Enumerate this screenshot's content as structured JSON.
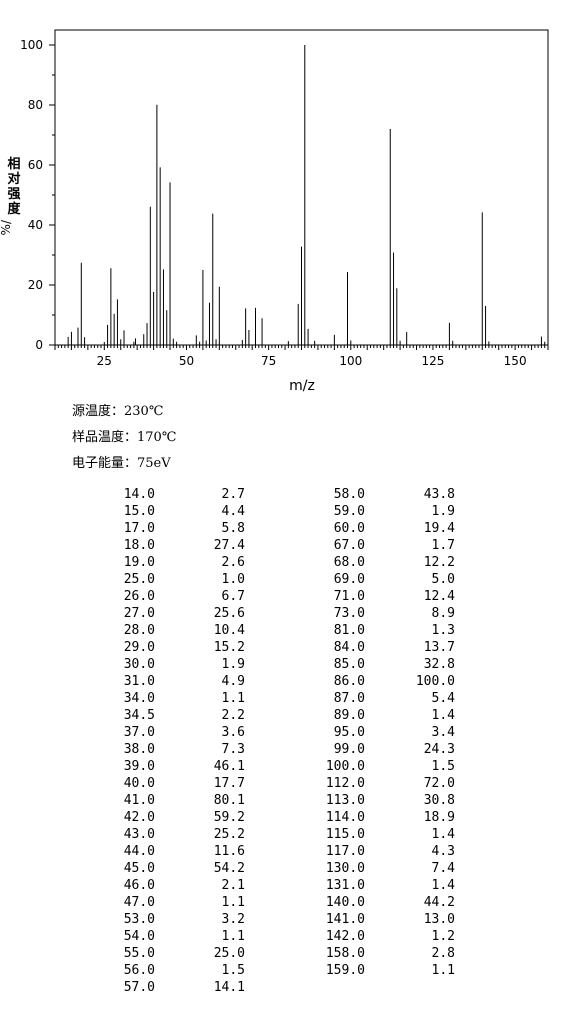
{
  "chart_data": {
    "type": "bar",
    "xlabel": "m/z",
    "ylabel_chars": [
      "相",
      "对",
      "强",
      "度"
    ],
    "ylabel_unit": "%/",
    "xlim": [
      10,
      160
    ],
    "ylim": [
      0,
      100
    ],
    "x_ticks": [
      25,
      50,
      75,
      100,
      125,
      150
    ],
    "y_ticks": [
      0,
      20,
      40,
      60,
      80,
      100
    ],
    "peaks": [
      [
        14.0,
        2.7
      ],
      [
        15.0,
        4.4
      ],
      [
        17.0,
        5.8
      ],
      [
        18.0,
        27.4
      ],
      [
        19.0,
        2.6
      ],
      [
        25.0,
        1.0
      ],
      [
        26.0,
        6.7
      ],
      [
        27.0,
        25.6
      ],
      [
        28.0,
        10.4
      ],
      [
        29.0,
        15.2
      ],
      [
        30.0,
        1.9
      ],
      [
        31.0,
        4.9
      ],
      [
        34.0,
        1.1
      ],
      [
        34.5,
        2.2
      ],
      [
        37.0,
        3.6
      ],
      [
        38.0,
        7.3
      ],
      [
        39.0,
        46.1
      ],
      [
        40.0,
        17.7
      ],
      [
        41.0,
        80.1
      ],
      [
        42.0,
        59.2
      ],
      [
        43.0,
        25.2
      ],
      [
        44.0,
        11.6
      ],
      [
        45.0,
        54.2
      ],
      [
        46.0,
        2.1
      ],
      [
        47.0,
        1.1
      ],
      [
        53.0,
        3.2
      ],
      [
        54.0,
        1.1
      ],
      [
        55.0,
        25.0
      ],
      [
        56.0,
        1.5
      ],
      [
        57.0,
        14.1
      ],
      [
        58.0,
        43.8
      ],
      [
        59.0,
        1.9
      ],
      [
        60.0,
        19.4
      ],
      [
        67.0,
        1.7
      ],
      [
        68.0,
        12.2
      ],
      [
        69.0,
        5.0
      ],
      [
        71.0,
        12.4
      ],
      [
        73.0,
        8.9
      ],
      [
        81.0,
        1.3
      ],
      [
        84.0,
        13.7
      ],
      [
        85.0,
        32.8
      ],
      [
        86.0,
        100.0
      ],
      [
        87.0,
        5.4
      ],
      [
        89.0,
        1.4
      ],
      [
        95.0,
        3.4
      ],
      [
        99.0,
        24.3
      ],
      [
        100.0,
        1.5
      ],
      [
        112.0,
        72.0
      ],
      [
        113.0,
        30.8
      ],
      [
        114.0,
        18.9
      ],
      [
        115.0,
        1.4
      ],
      [
        117.0,
        4.3
      ],
      [
        130.0,
        7.4
      ],
      [
        131.0,
        1.4
      ],
      [
        140.0,
        44.2
      ],
      [
        141.0,
        13.0
      ],
      [
        142.0,
        1.2
      ],
      [
        158.0,
        2.8
      ],
      [
        159.0,
        1.1
      ]
    ]
  },
  "info": {
    "source_temp": "源温度：230℃",
    "sample_temp": "样品温度：170℃",
    "electron_energy": "电子能量：75eV"
  },
  "table_left": [
    [
      "14.0",
      "2.7"
    ],
    [
      "15.0",
      "4.4"
    ],
    [
      "17.0",
      "5.8"
    ],
    [
      "18.0",
      "27.4"
    ],
    [
      "19.0",
      "2.6"
    ],
    [
      "25.0",
      "1.0"
    ],
    [
      "26.0",
      "6.7"
    ],
    [
      "27.0",
      "25.6"
    ],
    [
      "28.0",
      "10.4"
    ],
    [
      "29.0",
      "15.2"
    ],
    [
      "30.0",
      "1.9"
    ],
    [
      "31.0",
      "4.9"
    ],
    [
      "34.0",
      "1.1"
    ],
    [
      "34.5",
      "2.2"
    ],
    [
      "37.0",
      "3.6"
    ],
    [
      "38.0",
      "7.3"
    ],
    [
      "39.0",
      "46.1"
    ],
    [
      "40.0",
      "17.7"
    ],
    [
      "41.0",
      "80.1"
    ],
    [
      "42.0",
      "59.2"
    ],
    [
      "43.0",
      "25.2"
    ],
    [
      "44.0",
      "11.6"
    ],
    [
      "45.0",
      "54.2"
    ],
    [
      "46.0",
      "2.1"
    ],
    [
      "47.0",
      "1.1"
    ],
    [
      "53.0",
      "3.2"
    ],
    [
      "54.0",
      "1.1"
    ],
    [
      "55.0",
      "25.0"
    ],
    [
      "56.0",
      "1.5"
    ],
    [
      "57.0",
      "14.1"
    ]
  ],
  "table_right": [
    [
      "58.0",
      "43.8"
    ],
    [
      "59.0",
      "1.9"
    ],
    [
      "60.0",
      "19.4"
    ],
    [
      "67.0",
      "1.7"
    ],
    [
      "68.0",
      "12.2"
    ],
    [
      "69.0",
      "5.0"
    ],
    [
      "71.0",
      "12.4"
    ],
    [
      "73.0",
      "8.9"
    ],
    [
      "81.0",
      "1.3"
    ],
    [
      "84.0",
      "13.7"
    ],
    [
      "85.0",
      "32.8"
    ],
    [
      "86.0",
      "100.0"
    ],
    [
      "87.0",
      "5.4"
    ],
    [
      "89.0",
      "1.4"
    ],
    [
      "95.0",
      "3.4"
    ],
    [
      "99.0",
      "24.3"
    ],
    [
      "100.0",
      "1.5"
    ],
    [
      "112.0",
      "72.0"
    ],
    [
      "113.0",
      "30.8"
    ],
    [
      "114.0",
      "18.9"
    ],
    [
      "115.0",
      "1.4"
    ],
    [
      "117.0",
      "4.3"
    ],
    [
      "130.0",
      "7.4"
    ],
    [
      "131.0",
      "1.4"
    ],
    [
      "140.0",
      "44.2"
    ],
    [
      "141.0",
      "13.0"
    ],
    [
      "142.0",
      "1.2"
    ],
    [
      "158.0",
      "2.8"
    ],
    [
      "159.0",
      "1.1"
    ]
  ]
}
